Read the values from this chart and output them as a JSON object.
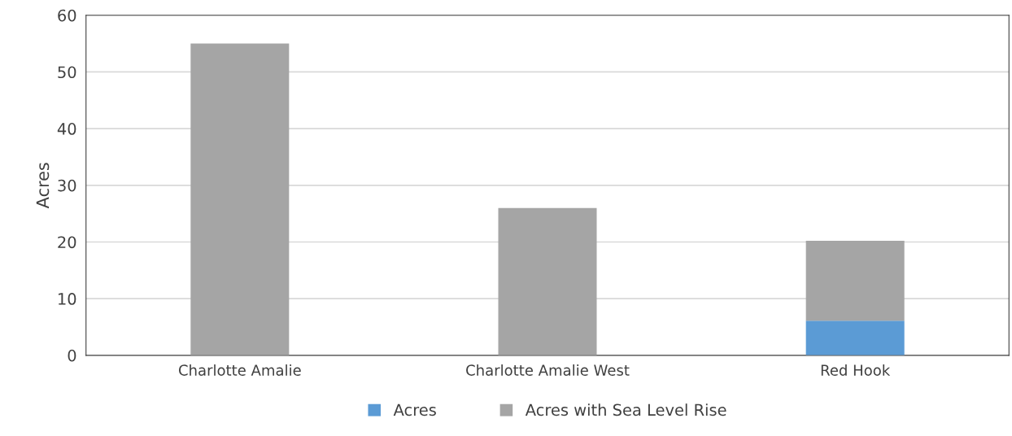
{
  "chart_data": {
    "type": "bar",
    "stacked": true,
    "ylabel": "Acres",
    "categories": [
      "Charlotte Amalie",
      "Charlotte Amalie West",
      "Red Hook"
    ],
    "series": [
      {
        "name": "Acres",
        "color": "#5b9bd5",
        "values": [
          0,
          0,
          6.1
        ]
      },
      {
        "name": "Acres with Sea Level Rise",
        "color": "#a5a5a5",
        "values": [
          55,
          26,
          14.1
        ]
      }
    ],
    "ylim": [
      0,
      60
    ],
    "yticks": [
      0,
      10,
      20,
      30,
      40,
      50,
      60
    ],
    "grid": "y",
    "legend": "bottom"
  }
}
